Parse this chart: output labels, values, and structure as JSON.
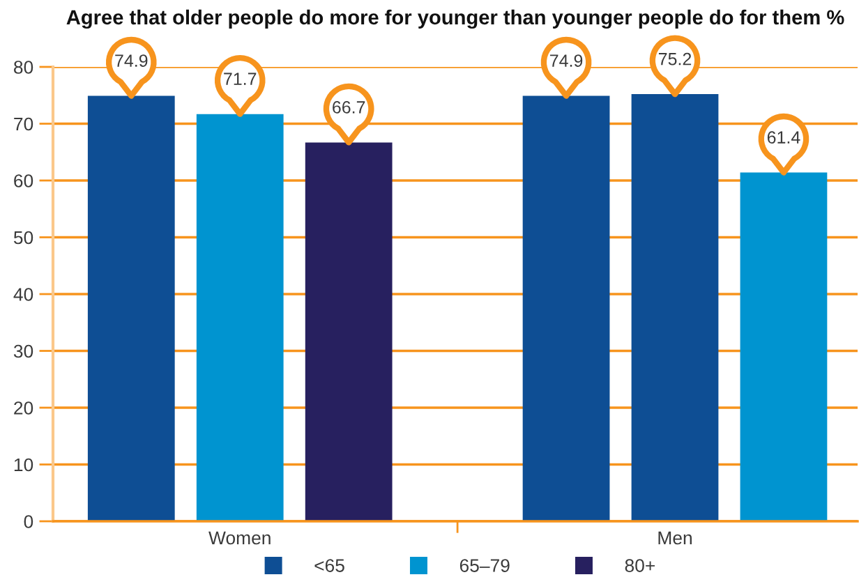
{
  "chart_data": {
    "type": "bar",
    "title": "Agree that older people do more for younger than younger people do for them %",
    "categories": [
      "Women",
      "Men"
    ],
    "series": [
      {
        "name": "<65",
        "color": "#0e4e94",
        "values": [
          74.9,
          74.9
        ]
      },
      {
        "name": "65–79",
        "color": "#0094d0",
        "colors": [
          "#0094d0",
          "#0e4e94"
        ],
        "values": [
          71.7,
          75.2
        ]
      },
      {
        "name": "80+",
        "color": "#27205f",
        "colors": [
          "#27205f",
          "#0094d0"
        ],
        "values": [
          66.7,
          61.4
        ]
      }
    ],
    "ylim": [
      0,
      80
    ],
    "yticks": [
      0,
      10,
      20,
      30,
      40,
      50,
      60,
      70,
      80
    ],
    "grid": "y",
    "legend": "bottom",
    "data_labels": true
  }
}
